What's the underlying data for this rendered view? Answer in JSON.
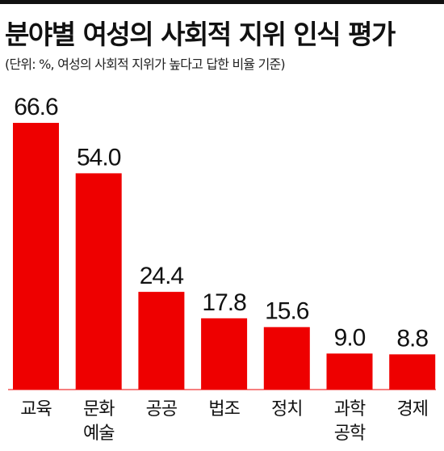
{
  "chart_data": {
    "type": "bar",
    "title": "분야별 여성의 사회적 지위 인식 평가",
    "subtitle": "(단위: %, 여성의 사회적 지위가 높다고 답한 비율 기준)",
    "categories": [
      [
        "교육"
      ],
      [
        "문화",
        "예술"
      ],
      [
        "공공"
      ],
      [
        "법조"
      ],
      [
        "정치"
      ],
      [
        "과학",
        "공학"
      ],
      [
        "경제"
      ]
    ],
    "values": [
      66.6,
      54.0,
      24.4,
      17.8,
      15.6,
      9.0,
      8.8
    ],
    "value_labels": [
      "66.6",
      "54.0",
      "24.4",
      "17.8",
      "15.6",
      "9.0",
      "8.8"
    ],
    "bar_color": "#ee0000",
    "ylim": [
      0,
      66.6
    ]
  }
}
